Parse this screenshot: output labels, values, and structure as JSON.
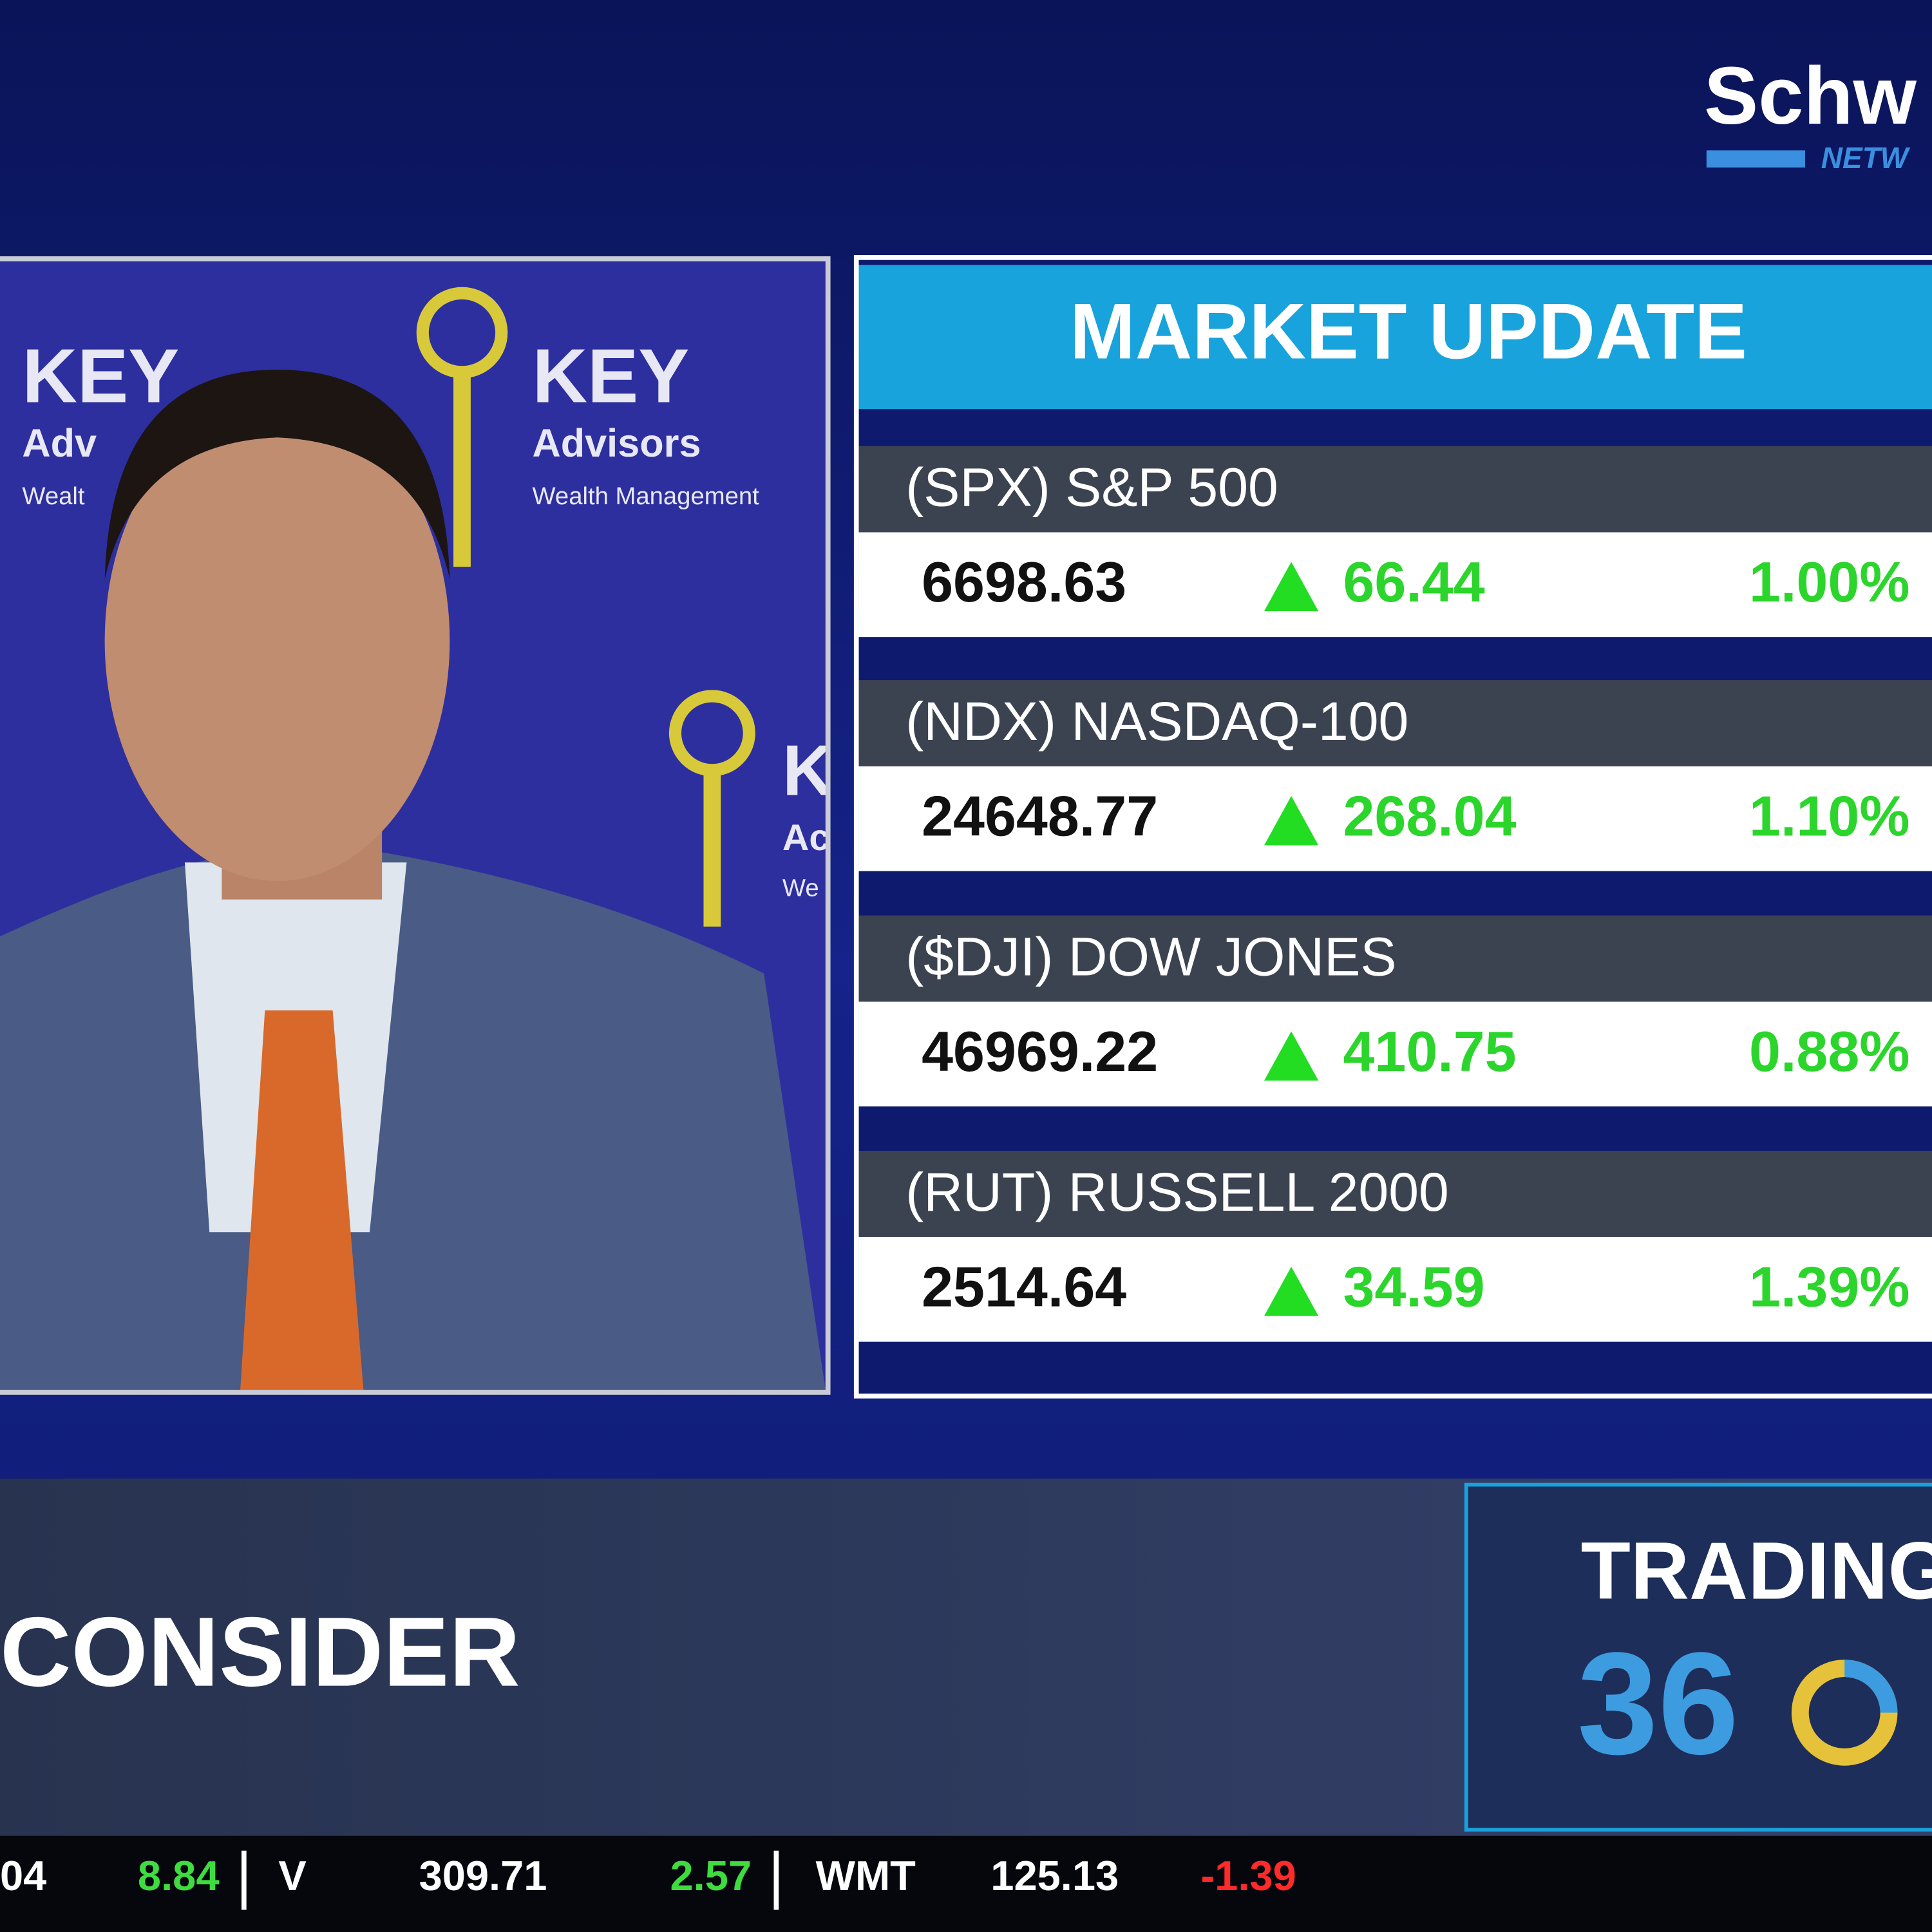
{
  "logo": {
    "brand": "Schw",
    "network": "NETW"
  },
  "backdrop": {
    "left": {
      "name": "KEY",
      "tagline": "Adv",
      "sub": "Wealt"
    },
    "center": {
      "name": "KEY",
      "tagline": "Advisors",
      "sub": "Wealth Management"
    },
    "right": {
      "name": "K",
      "tagline": "Ac",
      "sub": "We"
    }
  },
  "market_update": {
    "title": "MARKET UPDATE",
    "rows": [
      {
        "label": "(SPX) S&P 500",
        "price": "6698.63",
        "change": "66.44",
        "percent": "1.00%"
      },
      {
        "label": "(NDX) NASDAQ-100",
        "price": "24648.77",
        "change": "268.04",
        "percent": "1.10%"
      },
      {
        "label": "($DJI) DOW JONES",
        "price": "46969.22",
        "change": "410.75",
        "percent": "0.88%"
      },
      {
        "label": "(RUT) RUSSELL 2000",
        "price": "2514.64",
        "change": "34.59",
        "percent": "1.39%"
      }
    ]
  },
  "lower_third": {
    "headline": "CONSIDER",
    "show_top": "TRADING",
    "show_bottom": "36"
  },
  "ticker": [
    {
      "price": "04",
      "change": "8.84",
      "direction": "up"
    },
    {
      "symbol": "V",
      "price": "309.71",
      "change": "2.57",
      "direction": "up"
    },
    {
      "symbol": "WMT",
      "price": "125.13",
      "change": "-1.39",
      "direction": "down"
    }
  ]
}
